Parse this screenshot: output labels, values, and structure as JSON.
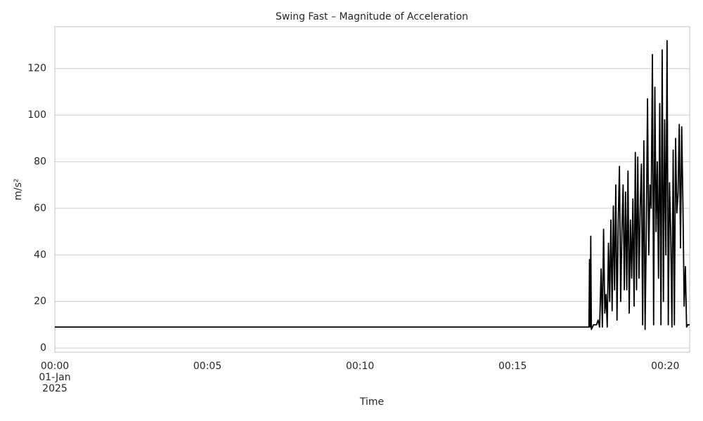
{
  "chart_data": {
    "type": "line",
    "title": "Swing Fast – Magnitude of Acceleration",
    "xlabel": "Time",
    "ylabel": "m/s²",
    "x": [
      0,
      17.5,
      17.52,
      17.54,
      17.56,
      17.58,
      17.65,
      17.75,
      17.8,
      17.85,
      17.9,
      17.94,
      17.98,
      18.02,
      18.06,
      18.1,
      18.14,
      18.18,
      18.22,
      18.26,
      18.3,
      18.34,
      18.38,
      18.42,
      18.46,
      18.5,
      18.54,
      18.58,
      18.62,
      18.66,
      18.7,
      18.74,
      18.78,
      18.82,
      18.86,
      18.9,
      18.94,
      18.98,
      19.02,
      19.06,
      19.1,
      19.14,
      19.18,
      19.22,
      19.26,
      19.3,
      19.34,
      19.38,
      19.42,
      19.46,
      19.5,
      19.54,
      19.58,
      19.62,
      19.66,
      19.7,
      19.74,
      19.78,
      19.82,
      19.86,
      19.9,
      19.94,
      19.98,
      20.02,
      20.06,
      20.1,
      20.14,
      20.18,
      20.22,
      20.26,
      20.3,
      20.34,
      20.38,
      20.42,
      20.46,
      20.5,
      20.54,
      20.58,
      20.62,
      20.66,
      20.7,
      20.74,
      20.8
    ],
    "values": [
      9,
      9,
      38,
      9,
      48,
      8,
      10,
      10,
      12,
      9,
      34,
      9,
      51,
      15,
      23,
      9,
      45,
      20,
      55,
      16,
      61,
      25,
      70,
      12,
      54,
      78,
      20,
      50,
      70,
      25,
      67,
      25,
      76,
      15,
      55,
      30,
      64,
      18,
      84,
      25,
      82,
      30,
      60,
      79,
      10,
      89,
      8,
      50,
      107,
      40,
      70,
      60,
      126,
      10,
      112,
      50,
      80,
      30,
      105,
      10,
      128,
      20,
      98,
      40,
      132,
      10,
      71,
      50,
      9,
      85,
      10,
      90,
      58,
      66,
      96,
      43,
      95,
      62,
      18,
      35,
      9,
      10,
      10
    ],
    "color": "#000000",
    "xlim": [
      0,
      20.8
    ],
    "xticks": [
      {
        "value": 0,
        "label": "00:00\n01-Jan\n2025"
      },
      {
        "value": 5,
        "label": "00:05"
      },
      {
        "value": 10,
        "label": "00:10"
      },
      {
        "value": 15,
        "label": "00:15"
      },
      {
        "value": 20,
        "label": "00:20"
      }
    ],
    "ylim": [
      -1.8,
      138
    ],
    "yticks": [
      0,
      20,
      40,
      60,
      80,
      100,
      120
    ],
    "grid": true
  }
}
